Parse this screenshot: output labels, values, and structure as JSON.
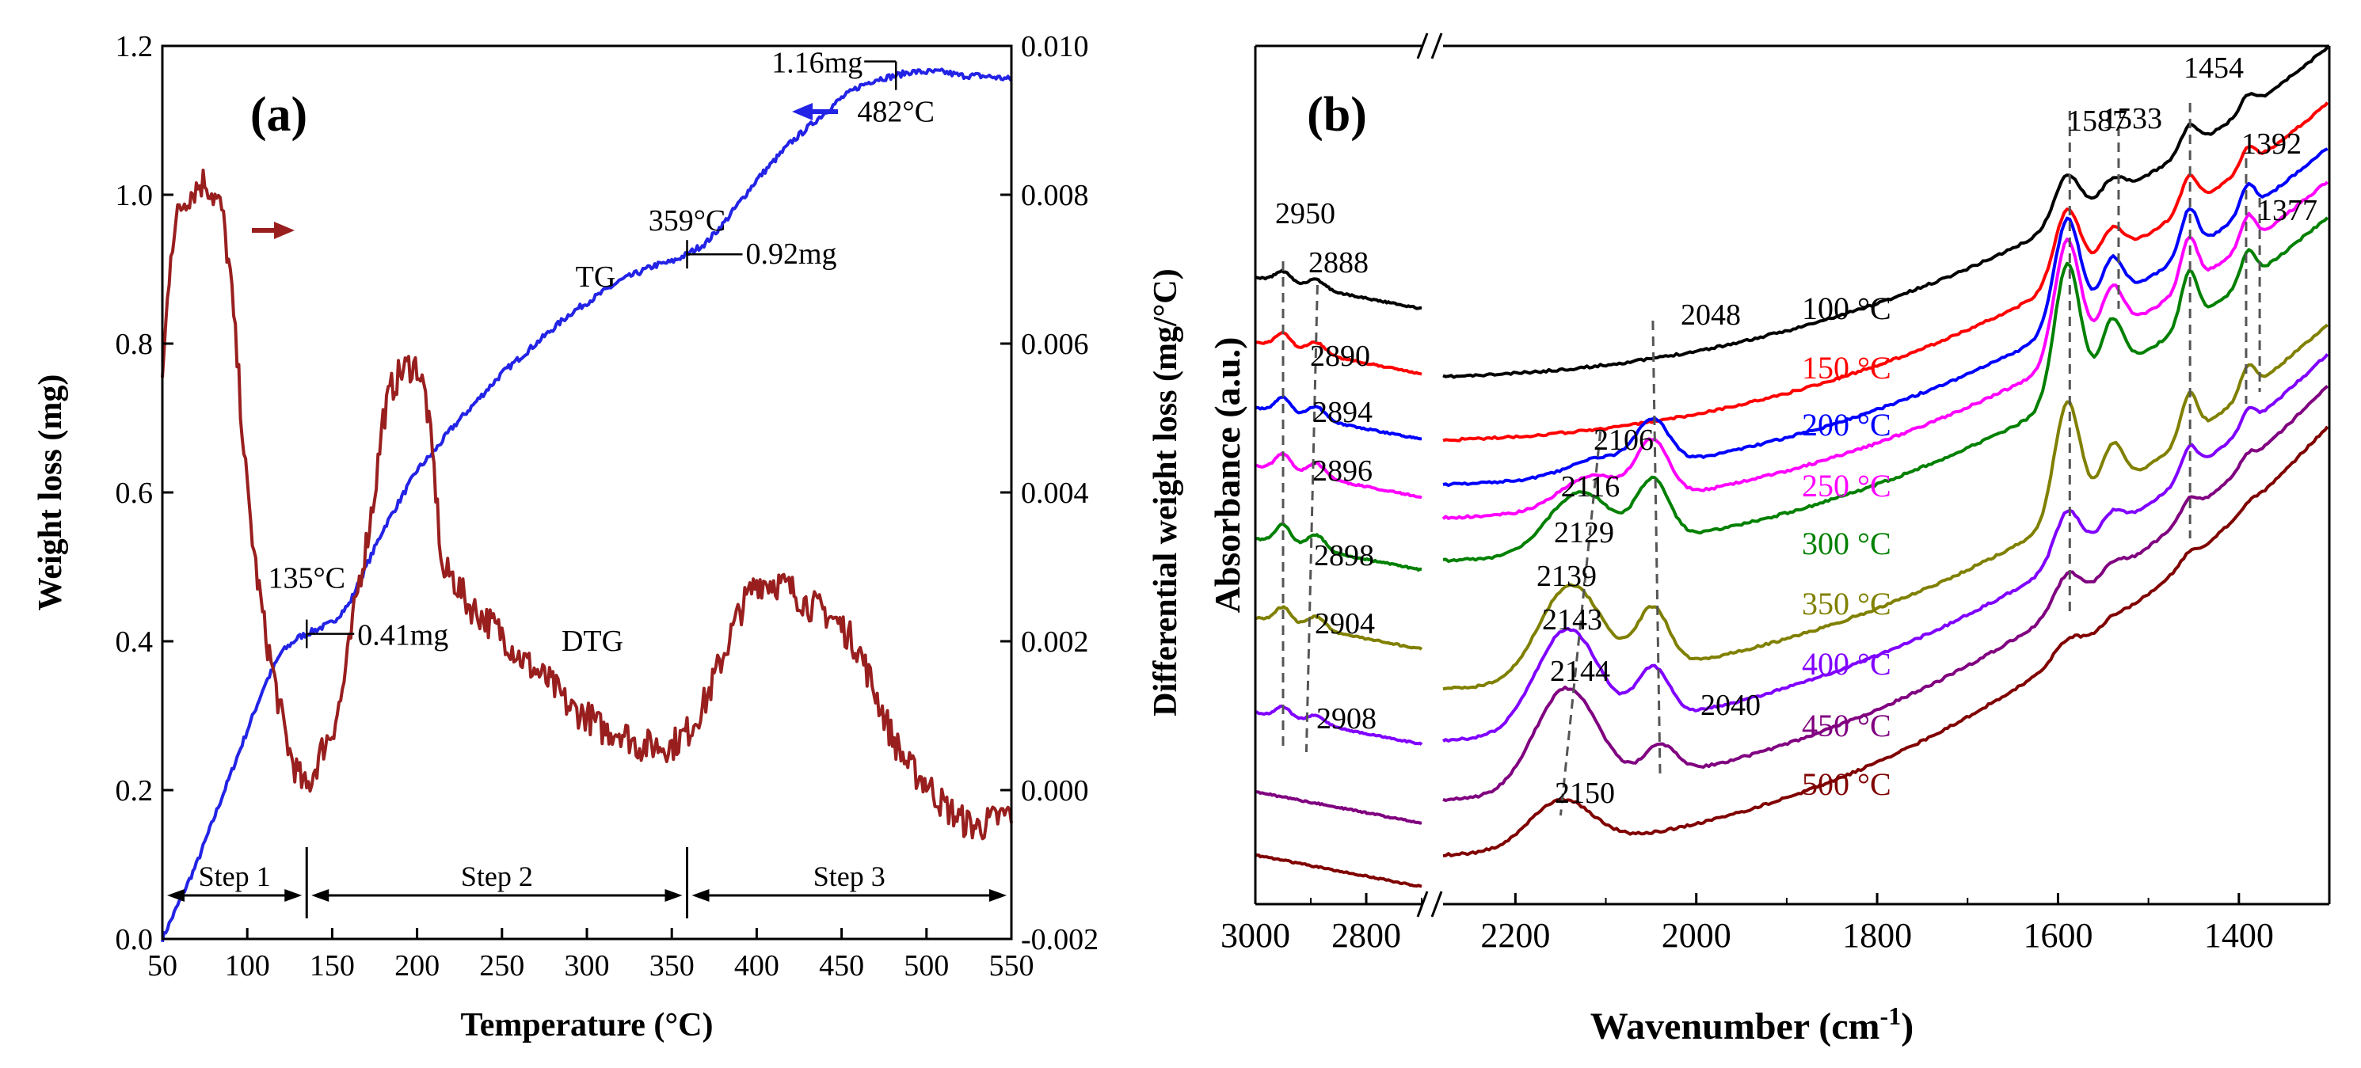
{
  "chart_data": [
    {
      "panel_label": "(a)",
      "type": "line",
      "xlabel": "Temperature (°C)",
      "ylabel": "Weight loss (mg)",
      "y2label": "Differential weight loss (mg/°C)",
      "xlim": [
        50,
        550
      ],
      "ylim": [
        0,
        1.2
      ],
      "y2lim": [
        -0.002,
        0.01
      ],
      "xticks": [
        50,
        100,
        150,
        200,
        250,
        300,
        350,
        400,
        450,
        500,
        550
      ],
      "yticks": [
        0.0,
        0.2,
        0.4,
        0.6,
        0.8,
        1.0,
        1.2
      ],
      "y2ticks": [
        -0.002,
        0.0,
        0.002,
        0.004,
        0.006,
        0.008,
        0.01
      ],
      "xticklabels": [
        "50",
        "100",
        "150",
        "200",
        "250",
        "300",
        "350",
        "400",
        "450",
        "500",
        "550"
      ],
      "yticklabels": [
        "0.0",
        "0.2",
        "0.4",
        "0.6",
        "0.8",
        "1.0",
        "1.2"
      ],
      "y2ticklabels": [
        "-0.002",
        "0.000",
        "0.002",
        "0.004",
        "0.006",
        "0.008",
        "0.010"
      ],
      "series": [
        {
          "name": "TG",
          "axis": "left",
          "color": "#2323e6",
          "jitter": 0.004,
          "x": [
            50,
            60,
            70,
            80,
            90,
            100,
            110,
            120,
            130,
            135,
            140,
            150,
            160,
            170,
            180,
            190,
            200,
            210,
            220,
            230,
            240,
            250,
            260,
            270,
            280,
            290,
            300,
            310,
            320,
            330,
            340,
            350,
            359,
            370,
            380,
            390,
            400,
            410,
            420,
            430,
            440,
            450,
            460,
            470,
            482,
            490,
            500,
            510,
            520,
            530,
            540,
            550
          ],
          "y": [
            0.0,
            0.05,
            0.1,
            0.16,
            0.22,
            0.28,
            0.34,
            0.385,
            0.405,
            0.41,
            0.415,
            0.425,
            0.45,
            0.5,
            0.55,
            0.59,
            0.63,
            0.655,
            0.685,
            0.71,
            0.735,
            0.76,
            0.78,
            0.8,
            0.82,
            0.84,
            0.855,
            0.87,
            0.885,
            0.895,
            0.905,
            0.91,
            0.92,
            0.935,
            0.96,
            0.99,
            1.02,
            1.045,
            1.07,
            1.09,
            1.11,
            1.13,
            1.145,
            1.155,
            1.16,
            1.165,
            1.165,
            1.165,
            1.16,
            1.16,
            1.158,
            1.155
          ]
        },
        {
          "name": "DTG",
          "axis": "right",
          "color": "#991f1f",
          "jitter": 0.00022,
          "x": [
            50,
            55,
            60,
            65,
            70,
            75,
            80,
            85,
            90,
            95,
            100,
            105,
            110,
            115,
            120,
            125,
            130,
            135,
            140,
            145,
            150,
            155,
            160,
            165,
            170,
            175,
            180,
            185,
            190,
            195,
            200,
            205,
            210,
            215,
            220,
            230,
            240,
            250,
            260,
            270,
            280,
            290,
            300,
            310,
            320,
            330,
            340,
            350,
            360,
            370,
            380,
            390,
            400,
            410,
            420,
            430,
            440,
            450,
            460,
            470,
            480,
            490,
            500,
            510,
            520,
            530,
            540,
            550
          ],
          "y": [
            0.0055,
            0.0073,
            0.0078,
            0.008,
            0.0081,
            0.0082,
            0.008,
            0.0078,
            0.0069,
            0.0055,
            0.004,
            0.003,
            0.0022,
            0.0016,
            0.001,
            0.0005,
            0.0002,
            0.0,
            0.0003,
            0.0006,
            0.0008,
            0.0012,
            0.0019,
            0.0027,
            0.0033,
            0.004,
            0.005,
            0.0054,
            0.0056,
            0.0057,
            0.0057,
            0.0053,
            0.0043,
            0.0029,
            0.0029,
            0.0025,
            0.0023,
            0.0021,
            0.0018,
            0.0016,
            0.0014,
            0.0011,
            0.001,
            0.0008,
            0.0008,
            0.0006,
            0.0006,
            0.0006,
            0.0008,
            0.0012,
            0.0018,
            0.0024,
            0.0028,
            0.0028,
            0.0027,
            0.0025,
            0.0024,
            0.0022,
            0.0019,
            0.0013,
            0.0007,
            0.0003,
            0.0001,
            -0.0002,
            -0.0004,
            -0.0005,
            -0.0004,
            -0.0003
          ]
        }
      ],
      "annotations": [
        {
          "text": "1.16mg",
          "x": 482,
          "y": 1.16
        },
        {
          "text": "482°C",
          "x": 482,
          "y": 1.16
        },
        {
          "text": "359°C",
          "x": 359,
          "y": 0.92
        },
        {
          "text": "0.92mg",
          "x": 359,
          "y": 0.92
        },
        {
          "text": "135°C",
          "x": 135,
          "y": 0.41
        },
        {
          "text": "0.41mg",
          "x": 135,
          "y": 0.41
        },
        {
          "text": "TG"
        },
        {
          "text": "DTG"
        }
      ],
      "steps": [
        {
          "label": "Step 1",
          "from": 50,
          "to": 135
        },
        {
          "label": "Step 2",
          "from": 135,
          "to": 359
        },
        {
          "label": "Step 3",
          "from": 359,
          "to": 550
        }
      ],
      "arrow_colors": {
        "DTG": "#991f1f",
        "TG": "#2323e6"
      }
    },
    {
      "panel_label": "(b)",
      "type": "line",
      "xlabel": "Wavenumber (cm",
      "xlabel_superscript": "-1",
      "xlabel_close": ")",
      "ylabel": "Absorbance (a.u.)",
      "x_axis_broken": true,
      "x_segments": [
        {
          "range": [
            3000,
            2700
          ],
          "ticks": [
            3000,
            2800
          ],
          "ticklabels": [
            "3000",
            "2800"
          ]
        },
        {
          "range": [
            2280,
            1300
          ],
          "ticks": [
            2200,
            2000,
            1800,
            1600,
            1400
          ],
          "ticklabels": [
            "2200",
            "2000",
            "1800",
            "1600",
            "1400"
          ]
        }
      ],
      "series": [
        {
          "name": "100 °C",
          "color": "#000000",
          "offset": 0.0,
          "amp": 1.0
        },
        {
          "name": "150 °C",
          "color": "#ff0000",
          "offset": 1.0,
          "amp": 1.0
        },
        {
          "name": "200 °C",
          "color": "#0000ff",
          "offset": 2.0,
          "amp": 1.0
        },
        {
          "name": "250 °C",
          "color": "#ff00ff",
          "offset": 3.0,
          "amp": 1.0
        },
        {
          "name": "300 °C",
          "color": "#008000",
          "offset": 4.0,
          "amp": 1.0
        },
        {
          "name": "350 °C",
          "color": "#808000",
          "offset": 5.0,
          "amp": 1.0
        },
        {
          "name": "400 °C",
          "color": "#8000ff",
          "offset": 6.0,
          "amp": 1.0
        },
        {
          "name": "450 °C",
          "color": "#800080",
          "offset": 7.0,
          "amp": 1.0
        },
        {
          "name": "500 °C",
          "color": "#800000",
          "offset": 8.0,
          "amp": 1.0
        }
      ],
      "peak_labels": [
        {
          "text": "2950",
          "x": 2950
        },
        {
          "text": "2888",
          "x": 2888
        },
        {
          "text": "2890",
          "x": 2890
        },
        {
          "text": "2894",
          "x": 2894
        },
        {
          "text": "2896",
          "x": 2896
        },
        {
          "text": "2898",
          "x": 2898
        },
        {
          "text": "2904",
          "x": 2904
        },
        {
          "text": "2908",
          "x": 2908
        },
        {
          "text": "2048",
          "x": 2048
        },
        {
          "text": "2106",
          "x": 2106
        },
        {
          "text": "2116",
          "x": 2116
        },
        {
          "text": "2129",
          "x": 2129
        },
        {
          "text": "2139",
          "x": 2139
        },
        {
          "text": "2143",
          "x": 2143
        },
        {
          "text": "2144",
          "x": 2144
        },
        {
          "text": "2040",
          "x": 2040
        },
        {
          "text": "2150",
          "x": 2150
        },
        {
          "text": "1587",
          "x": 1587
        },
        {
          "text": "1533",
          "x": 1533
        },
        {
          "text": "1454",
          "x": 1454
        },
        {
          "text": "1392",
          "x": 1392
        },
        {
          "text": "1377",
          "x": 1377
        }
      ]
    }
  ]
}
